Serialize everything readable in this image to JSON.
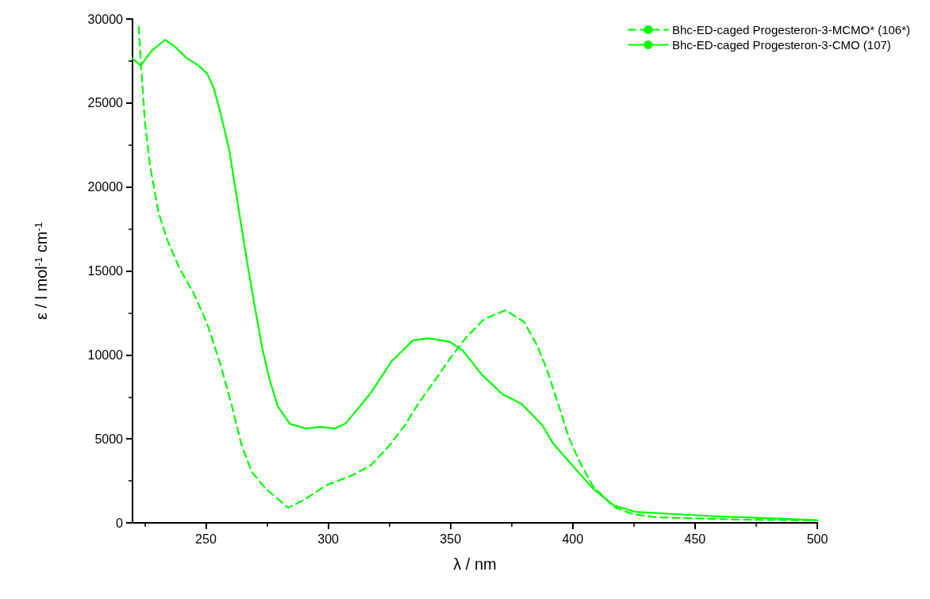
{
  "chart_data": {
    "type": "line",
    "xlabel": "λ / nm",
    "ylabel": "ε / l mol$^{-1}$ cm$^{-1}$",
    "xlim": [
      220,
      500
    ],
    "ylim": [
      0,
      30000
    ],
    "xticks": [
      250,
      300,
      350,
      400,
      450,
      500
    ],
    "yticks": [
      0,
      5000,
      10000,
      15000,
      20000,
      25000,
      30000
    ],
    "legend": "top right",
    "marker": "none",
    "series": [
      {
        "name": "Bhc-ED-caged Progesteron-3-MCMO* (106*)",
        "color": "#00ff00",
        "line_style": "dashed",
        "x": [
          222.5,
          223.6,
          225,
          227.1,
          230.7,
          234.3,
          239.2,
          244.8,
          250.5,
          256,
          260.3,
          264.5,
          268.7,
          274.5,
          283.6,
          290,
          298.9,
          308.6,
          317.3,
          324.9,
          331.4,
          336.8,
          342.2,
          349.8,
          356.3,
          363.8,
          372.5,
          380.1,
          385.5,
          389.8,
          394,
          398.5,
          402.8,
          408.2,
          416.8,
          424.4,
          434.2,
          447.2,
          468.7,
          500
        ],
        "values": [
          29530,
          27070,
          24000,
          21320,
          18440,
          16810,
          15160,
          13720,
          11870,
          9400,
          7150,
          4680,
          3040,
          2030,
          900,
          1350,
          2220,
          2750,
          3400,
          4580,
          5820,
          7090,
          8190,
          9780,
          11020,
          12140,
          12660,
          11970,
          10550,
          8980,
          7090,
          5050,
          3640,
          2200,
          940,
          520,
          330,
          280,
          190,
          140
        ]
      },
      {
        "name": "Bhc-ED-caged Progesteron-3-CMO (107)",
        "color": "#00ff00",
        "line_style": "solid",
        "x": [
          220,
          223.3,
          227.8,
          233.3,
          237,
          242,
          247,
          250.5,
          253.3,
          256,
          259.6,
          263.2,
          266.8,
          270.2,
          273,
          275.9,
          279.4,
          284.3,
          290.7,
          297,
          302.7,
          307,
          311.9,
          317.3,
          325.8,
          334.6,
          341.1,
          349.8,
          355.1,
          362.8,
          371.3,
          379,
          387.5,
          392,
          398.5,
          408.2,
          416.8,
          425.5,
          441.8,
          458,
          479.6,
          500
        ],
        "values": [
          27650,
          27230,
          28100,
          28760,
          28400,
          27690,
          27230,
          26760,
          25840,
          24400,
          22150,
          18850,
          15590,
          12700,
          10440,
          8600,
          6940,
          5900,
          5620,
          5710,
          5620,
          5900,
          6750,
          7710,
          9600,
          10860,
          10990,
          10780,
          10250,
          8830,
          7650,
          7090,
          5820,
          4720,
          3640,
          2050,
          1040,
          660,
          520,
          390,
          280,
          160
        ]
      }
    ]
  }
}
